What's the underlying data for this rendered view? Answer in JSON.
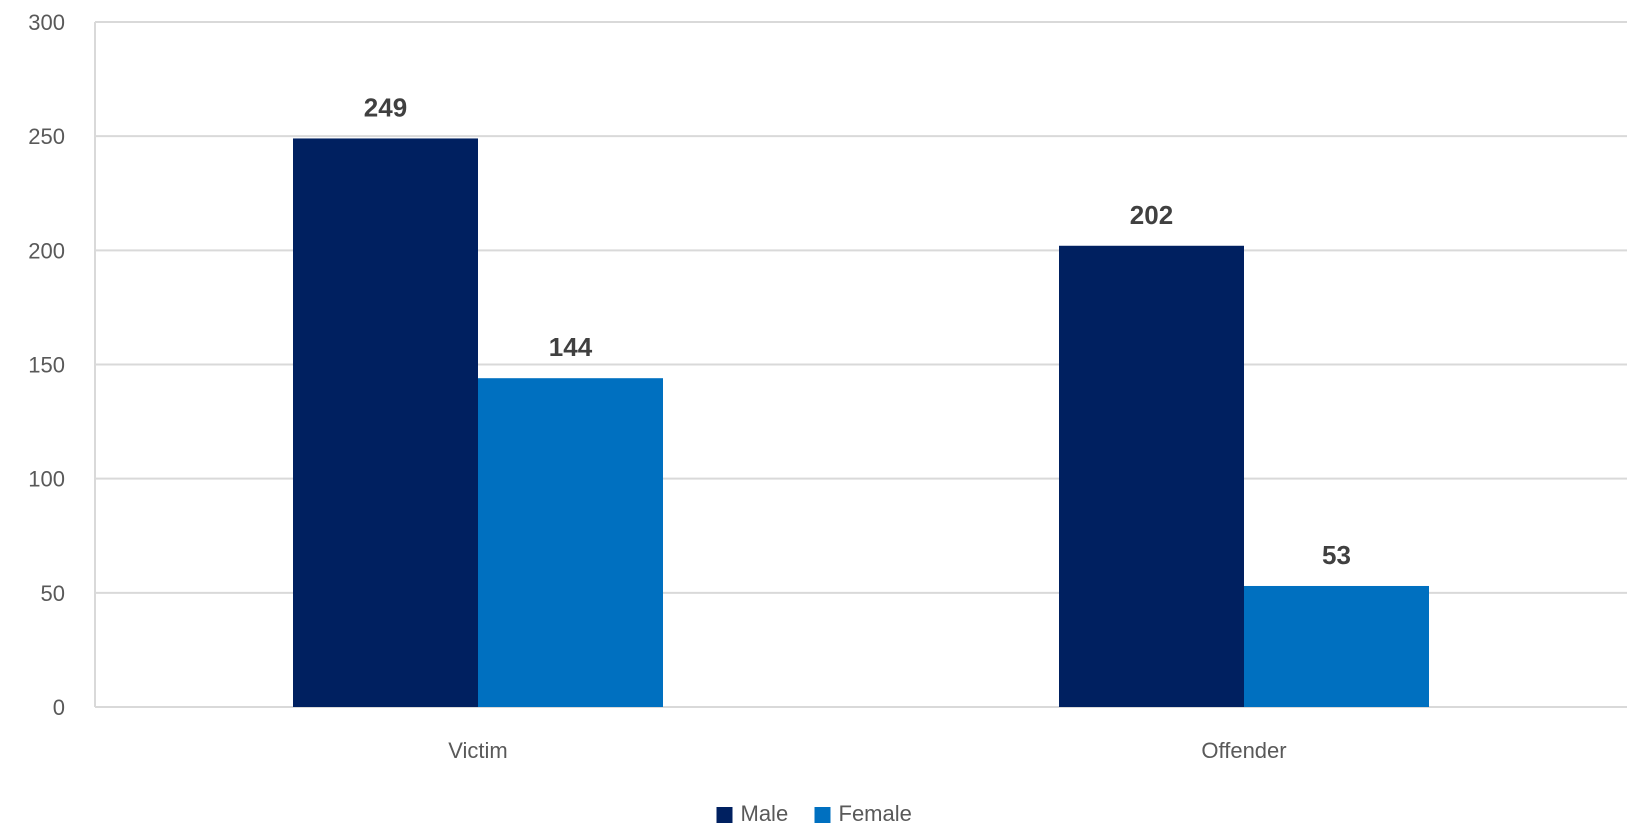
{
  "chart_data": {
    "type": "bar",
    "categories": [
      "Victim",
      "Offender"
    ],
    "series": [
      {
        "name": "Male",
        "values": [
          249,
          202
        ],
        "color": "#002060"
      },
      {
        "name": "Female",
        "values": [
          144,
          53
        ],
        "color": "#0070C0"
      }
    ],
    "ylim": [
      0,
      300
    ],
    "yticks": [
      0,
      50,
      100,
      150,
      200,
      250,
      300
    ],
    "grid": true,
    "legend": "bottom-center",
    "title": "",
    "xlabel": "",
    "ylabel": ""
  }
}
